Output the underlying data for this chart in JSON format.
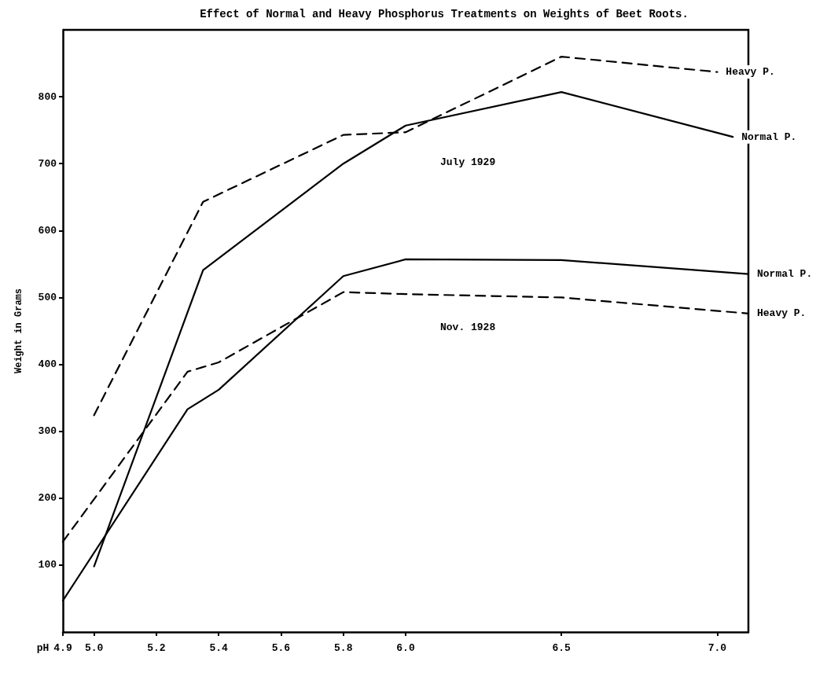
{
  "chart_data": {
    "type": "line",
    "title": "Effect of Normal and Heavy Phosphorus Treatments on Weights of Beet Roots.",
    "xlabel": "pH",
    "ylabel": "Weight in Grams",
    "xlim": [
      4.9,
      7.1
    ],
    "xticks": [
      4.9,
      {
        "value": 5,
        "label": "5.0"
      },
      5.2,
      5.4,
      5.6,
      5.8,
      {
        "value": 6,
        "label": "6.0"
      },
      6.5,
      {
        "value": 7,
        "label": "7.0"
      }
    ],
    "ylim": [
      0,
      900
    ],
    "yticks": [
      100,
      200,
      300,
      400,
      500,
      600,
      700,
      800
    ],
    "grid": false,
    "legend": false,
    "marker": "none",
    "annotations": [
      "July 1929",
      "Nov. 1928"
    ],
    "series": [
      {
        "name": "Heavy P.",
        "color": "#000000",
        "line_style": "dashed",
        "x": [
          5.0,
          5.35,
          5.8,
          6.0,
          6.5,
          7.0
        ],
        "values": [
          324,
          643,
          743,
          747,
          860,
          837
        ]
      },
      {
        "name": "Normal P.",
        "color": "#000000",
        "line_style": "solid",
        "x": [
          5.0,
          5.35,
          5.8,
          6.0,
          6.5,
          7.05
        ],
        "values": [
          98,
          541,
          700,
          757,
          807,
          740
        ]
      },
      {
        "name": "Normal P.",
        "color": "#000000",
        "line_style": "solid",
        "x": [
          4.9,
          5.3,
          5.4,
          5.8,
          6.0,
          6.5,
          7.1
        ],
        "values": [
          47,
          333,
          362,
          532,
          557,
          556,
          535
        ]
      },
      {
        "name": "Heavy P.",
        "color": "#000000",
        "line_style": "dashed",
        "x": [
          4.9,
          5.3,
          5.4,
          5.8,
          6.0,
          6.5,
          7.1
        ],
        "values": [
          135,
          389,
          403,
          508,
          505,
          500,
          476
        ]
      }
    ]
  }
}
